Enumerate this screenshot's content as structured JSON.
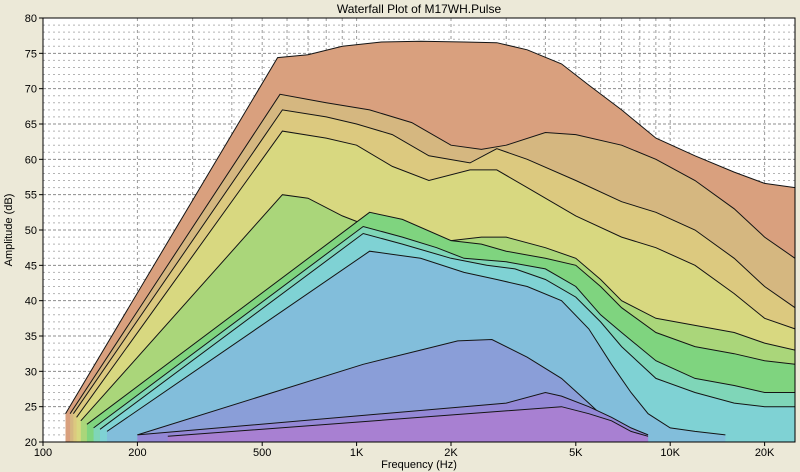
{
  "chart_data": {
    "type": "area",
    "title": "Waterfall Plot of M17WH.Pulse",
    "xlabel": "Frequency (Hz)",
    "ylabel": "Amplitude (dB)",
    "x_scale": "log",
    "xlim": [
      100,
      25000
    ],
    "ylim": [
      20,
      80
    ],
    "grid": true,
    "x_ticks": [
      {
        "value": 100,
        "label": "100"
      },
      {
        "value": 200,
        "label": "200"
      },
      {
        "value": 500,
        "label": "500"
      },
      {
        "value": 1000,
        "label": "1K"
      },
      {
        "value": 2000,
        "label": "2K"
      },
      {
        "value": 5000,
        "label": "5K"
      },
      {
        "value": 10000,
        "label": "10K"
      },
      {
        "value": 20000,
        "label": "20K"
      }
    ],
    "y_ticks": [
      20,
      25,
      30,
      35,
      40,
      45,
      50,
      55,
      60,
      65,
      70,
      75,
      80
    ],
    "slice_colors": [
      "#d9a07e",
      "#d5b780",
      "#dcc97f",
      "#d8d880",
      "#aad67a",
      "#7fd47f",
      "#7fd6b8",
      "#7fd2d4",
      "#82bedb",
      "#8a9ed8",
      "#9488d6",
      "#a880d2"
    ],
    "series": [
      {
        "values": [
          [
            118,
            24
          ],
          [
            560,
            74.4
          ],
          [
            700,
            74.8
          ],
          [
            900,
            76
          ],
          [
            1200,
            76.6
          ],
          [
            1600,
            76.7
          ],
          [
            2200,
            76.6
          ],
          [
            2800,
            76.5
          ],
          [
            3500,
            75.5
          ],
          [
            4500,
            73.5
          ],
          [
            5500,
            70.5
          ],
          [
            7000,
            67
          ],
          [
            9000,
            63
          ],
          [
            12000,
            60.5
          ],
          [
            16000,
            58.2
          ],
          [
            20000,
            56.6
          ],
          [
            25000,
            56
          ]
        ]
      },
      {
        "values": [
          [
            122,
            24
          ],
          [
            570,
            69.2
          ],
          [
            800,
            68
          ],
          [
            1100,
            67
          ],
          [
            1500,
            65.2
          ],
          [
            2000,
            62
          ],
          [
            2500,
            61.4
          ],
          [
            3000,
            62
          ],
          [
            4000,
            63.8
          ],
          [
            5000,
            63.5
          ],
          [
            7000,
            62
          ],
          [
            9000,
            60
          ],
          [
            12000,
            57
          ],
          [
            16000,
            53
          ],
          [
            20000,
            49
          ],
          [
            25000,
            46
          ]
        ]
      },
      {
        "values": [
          [
            125,
            24
          ],
          [
            580,
            67
          ],
          [
            800,
            66
          ],
          [
            1000,
            65
          ],
          [
            1300,
            63.5
          ],
          [
            1700,
            60.5
          ],
          [
            2300,
            59.5
          ],
          [
            2800,
            61.5
          ],
          [
            3500,
            60
          ],
          [
            5000,
            57
          ],
          [
            7000,
            54
          ],
          [
            9000,
            52.5
          ],
          [
            12000,
            50
          ],
          [
            16000,
            46
          ],
          [
            20000,
            42
          ],
          [
            25000,
            39
          ]
        ]
      },
      {
        "values": [
          [
            128,
            23.5
          ],
          [
            580,
            64
          ],
          [
            800,
            63
          ],
          [
            1000,
            62
          ],
          [
            1300,
            59
          ],
          [
            1700,
            57
          ],
          [
            2300,
            58.5
          ],
          [
            2800,
            58.5
          ],
          [
            3500,
            56
          ],
          [
            5000,
            52
          ],
          [
            7000,
            49
          ],
          [
            9000,
            47.5
          ],
          [
            12000,
            45
          ],
          [
            16000,
            41
          ],
          [
            20000,
            37.5
          ],
          [
            25000,
            36
          ]
        ]
      },
      {
        "values": [
          [
            132,
            23
          ],
          [
            580,
            55
          ],
          [
            700,
            54.5
          ],
          [
            900,
            52
          ],
          [
            1100,
            50.5
          ],
          [
            1400,
            50
          ],
          [
            2000,
            48.5
          ],
          [
            2500,
            49
          ],
          [
            3000,
            49
          ],
          [
            4000,
            47.5
          ],
          [
            5000,
            46
          ],
          [
            6000,
            43
          ],
          [
            7000,
            40
          ],
          [
            9000,
            37.5
          ],
          [
            12000,
            36.5
          ],
          [
            16000,
            35.5
          ],
          [
            20000,
            34
          ],
          [
            25000,
            33
          ]
        ]
      },
      {
        "values": [
          [
            138,
            22.5
          ],
          [
            1100,
            52.5
          ],
          [
            1400,
            51.5
          ],
          [
            2000,
            48.5
          ],
          [
            2500,
            48
          ],
          [
            3000,
            47
          ],
          [
            4000,
            46
          ],
          [
            5000,
            45
          ],
          [
            6000,
            42
          ],
          [
            7000,
            39
          ],
          [
            9000,
            35.5
          ],
          [
            12000,
            33.5
          ],
          [
            16000,
            32.5
          ],
          [
            20000,
            31.5
          ],
          [
            25000,
            31
          ]
        ]
      },
      {
        "values": [
          [
            145,
            22
          ],
          [
            1050,
            50.5
          ],
          [
            1400,
            49
          ],
          [
            1800,
            47.5
          ],
          [
            2200,
            46
          ],
          [
            3000,
            45.5
          ],
          [
            4000,
            44.5
          ],
          [
            5000,
            42
          ],
          [
            6000,
            38
          ],
          [
            7000,
            35.5
          ],
          [
            9000,
            31.5
          ],
          [
            12000,
            29
          ],
          [
            16000,
            28
          ],
          [
            20000,
            27
          ],
          [
            25000,
            27
          ]
        ]
      },
      {
        "values": [
          [
            152,
            21.8
          ],
          [
            1050,
            49.5
          ],
          [
            1400,
            48
          ],
          [
            2000,
            46
          ],
          [
            2600,
            45
          ],
          [
            3200,
            44.5
          ],
          [
            4000,
            43
          ],
          [
            5000,
            40.5
          ],
          [
            6000,
            37
          ],
          [
            7000,
            33.5
          ],
          [
            9000,
            29
          ],
          [
            12000,
            27
          ],
          [
            16000,
            25.5
          ],
          [
            20000,
            25
          ],
          [
            25000,
            25
          ]
        ]
      },
      {
        "values": [
          [
            160,
            21.5
          ],
          [
            1100,
            47
          ],
          [
            1600,
            46
          ],
          [
            2200,
            44
          ],
          [
            2800,
            43
          ],
          [
            3500,
            42
          ],
          [
            4500,
            40
          ],
          [
            5500,
            36
          ],
          [
            6500,
            31
          ],
          [
            7500,
            27
          ],
          [
            8500,
            24
          ],
          [
            10000,
            22
          ],
          [
            12000,
            21.5
          ],
          [
            15000,
            21
          ]
        ]
      },
      {
        "values": [
          [
            200,
            21
          ],
          [
            1050,
            31
          ],
          [
            1600,
            33
          ],
          [
            2100,
            34.3
          ],
          [
            2700,
            34.5
          ],
          [
            3500,
            32
          ],
          [
            4500,
            29
          ],
          [
            5500,
            25.5
          ],
          [
            6500,
            22.5
          ],
          [
            7500,
            21
          ]
        ]
      },
      {
        "values": [
          [
            200,
            21
          ],
          [
            3000,
            25.5
          ],
          [
            4000,
            27
          ],
          [
            4500,
            26.5
          ],
          [
            5500,
            25
          ],
          [
            6500,
            23.5
          ],
          [
            7500,
            22
          ],
          [
            8500,
            21
          ]
        ]
      },
      {
        "values": [
          [
            250,
            20.8
          ],
          [
            4500,
            25
          ],
          [
            5500,
            24
          ],
          [
            6500,
            23
          ],
          [
            7500,
            21.5
          ],
          [
            8500,
            20.8
          ]
        ]
      }
    ]
  }
}
